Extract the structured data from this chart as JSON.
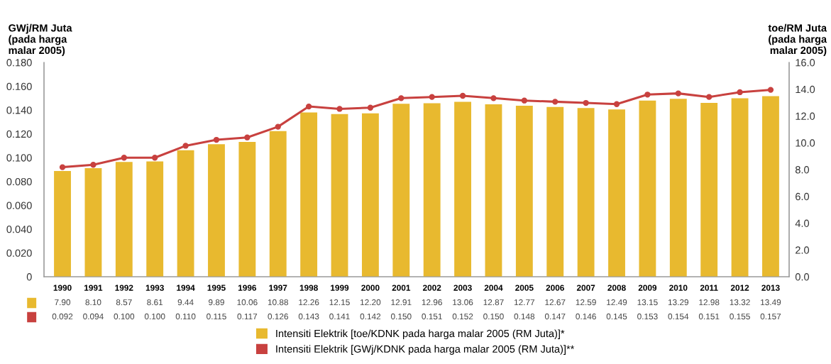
{
  "chart_data": {
    "type": "bar",
    "ylabel": "GWj/RM Juta\n(pada harga\nmalar 2005)",
    "y2label": "toe/RM Juta\n(pada harga\nmalar 2005)",
    "categories": [
      "1990",
      "1991",
      "1992",
      "1993",
      "1994",
      "1995",
      "1996",
      "1997",
      "1998",
      "1999",
      "2000",
      "2001",
      "2002",
      "2003",
      "2004",
      "2005",
      "2006",
      "2007",
      "2008",
      "2009",
      "2010",
      "2011",
      "2012",
      "2013"
    ],
    "series": [
      {
        "name": "Intensiti Elektrik [toe/KDNK pada harga malar 2005 (RM Juta)]*",
        "axis": "y2",
        "color": "#e8b92f",
        "values": [
          7.9,
          8.1,
          8.57,
          8.61,
          9.44,
          9.89,
          10.06,
          10.88,
          12.26,
          12.15,
          12.2,
          12.91,
          12.96,
          13.06,
          12.87,
          12.77,
          12.67,
          12.59,
          12.49,
          13.15,
          13.29,
          12.98,
          13.32,
          13.49
        ],
        "value_labels": [
          "7.90",
          "8.10",
          "8.57",
          "8.61",
          "9.44",
          "9.89",
          "10.06",
          "10.88",
          "12.26",
          "12.15",
          "12.20",
          "12.91",
          "12.96",
          "13.06",
          "12.87",
          "12.77",
          "12.67",
          "12.59",
          "12.49",
          "13.15",
          "13.29",
          "12.98",
          "13.32",
          "13.49"
        ]
      },
      {
        "name": "Intensiti Elektrik [GWj/KDNK pada harga malar 2005 (RM Juta)]**",
        "type": "line",
        "color": "#c8413f",
        "marker": "circle",
        "values": [
          0.092,
          0.094,
          0.1,
          0.1,
          0.11,
          0.115,
          0.117,
          0.126,
          0.143,
          0.141,
          0.142,
          0.15,
          0.151,
          0.152,
          0.15,
          0.148,
          0.147,
          0.146,
          0.145,
          0.153,
          0.154,
          0.151,
          0.155,
          0.157
        ],
        "value_labels": [
          "0.092",
          "0.094",
          "0.100",
          "0.100",
          "0.110",
          "0.115",
          "0.117",
          "0.126",
          "0.143",
          "0.141",
          "0.142",
          "0.150",
          "0.151",
          "0.152",
          "0.150",
          "0.148",
          "0.147",
          "0.146",
          "0.145",
          "0.153",
          "0.154",
          "0.151",
          "0.155",
          "0.157"
        ]
      }
    ],
    "ylim": [
      0,
      0.18
    ],
    "yticks": [
      {
        "value": 0,
        "label": "0"
      },
      {
        "value": 0.02,
        "label": "0.020"
      },
      {
        "value": 0.04,
        "label": "0.040"
      },
      {
        "value": 0.06,
        "label": "0.060"
      },
      {
        "value": 0.08,
        "label": "0.080"
      },
      {
        "value": 0.1,
        "label": "0.100"
      },
      {
        "value": 0.12,
        "label": "0.120"
      },
      {
        "value": 0.14,
        "label": "0.140"
      },
      {
        "value": 0.16,
        "label": "0.160"
      },
      {
        "value": 0.18,
        "label": "0.180"
      }
    ],
    "y2lim": [
      0,
      16
    ],
    "y2ticks": [
      {
        "value": 0,
        "label": "0.0"
      },
      {
        "value": 2,
        "label": "2.0"
      },
      {
        "value": 4,
        "label": "4.0"
      },
      {
        "value": 6,
        "label": "6.0"
      },
      {
        "value": 8,
        "label": "8.0"
      },
      {
        "value": 10,
        "label": "10.0"
      },
      {
        "value": 12,
        "label": "12.0"
      },
      {
        "value": 14,
        "label": "14.0"
      },
      {
        "value": 16,
        "label": "16.0"
      }
    ],
    "grid": false,
    "legend": "bottom"
  }
}
